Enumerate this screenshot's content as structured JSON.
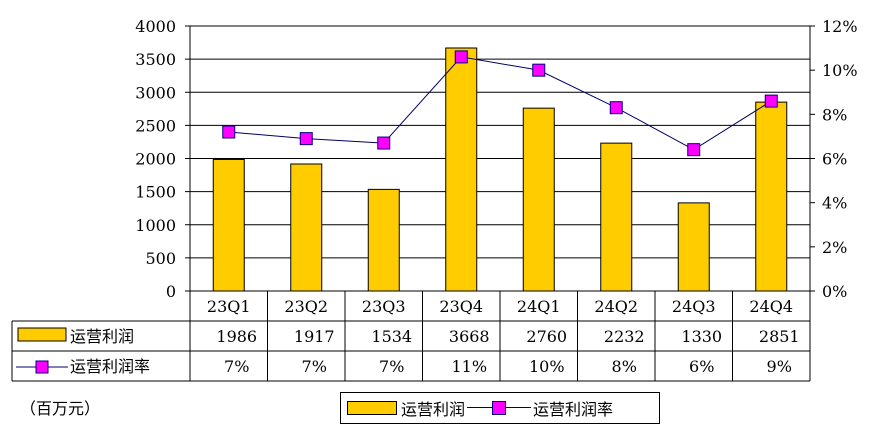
{
  "unit_label": "（百万元）",
  "legend": {
    "bar_label": "运营利润",
    "line_label": "运营利润率"
  },
  "colors": {
    "bar": "#FFCC00",
    "line": "#000066",
    "marker": "#FF00FF"
  },
  "chart_data": {
    "type": "bar",
    "categories": [
      "23Q1",
      "23Q2",
      "23Q3",
      "23Q4",
      "24Q1",
      "24Q2",
      "24Q3",
      "24Q4"
    ],
    "series": [
      {
        "name": "运营利润",
        "type": "bar",
        "axis": "left",
        "values": [
          1986,
          1917,
          1534,
          3668,
          2760,
          2232,
          1330,
          2851
        ]
      },
      {
        "name": "运营利润率",
        "type": "line",
        "axis": "right",
        "values": [
          7.2,
          6.9,
          6.7,
          10.6,
          10.0,
          8.3,
          6.4,
          8.6
        ]
      }
    ],
    "table_rows": [
      {
        "label": "运营利润",
        "values": [
          "1986",
          "1917",
          "1534",
          "3668",
          "2760",
          "2232",
          "1330",
          "2851"
        ]
      },
      {
        "label": "运营利润率",
        "values": [
          "7%",
          "7%",
          "7%",
          "11%",
          "10%",
          "8%",
          "6%",
          "9%"
        ]
      }
    ],
    "y_left": {
      "min": 0,
      "max": 4000,
      "step": 500,
      "ticks": [
        "0",
        "500",
        "1000",
        "1500",
        "2000",
        "2500",
        "3000",
        "3500",
        "4000"
      ]
    },
    "y_right": {
      "min": 0,
      "max": 12,
      "step": 2,
      "ticks": [
        "0%",
        "2%",
        "4%",
        "6%",
        "8%",
        "10%",
        "12%"
      ]
    },
    "grid": true,
    "legend_position": "bottom"
  }
}
